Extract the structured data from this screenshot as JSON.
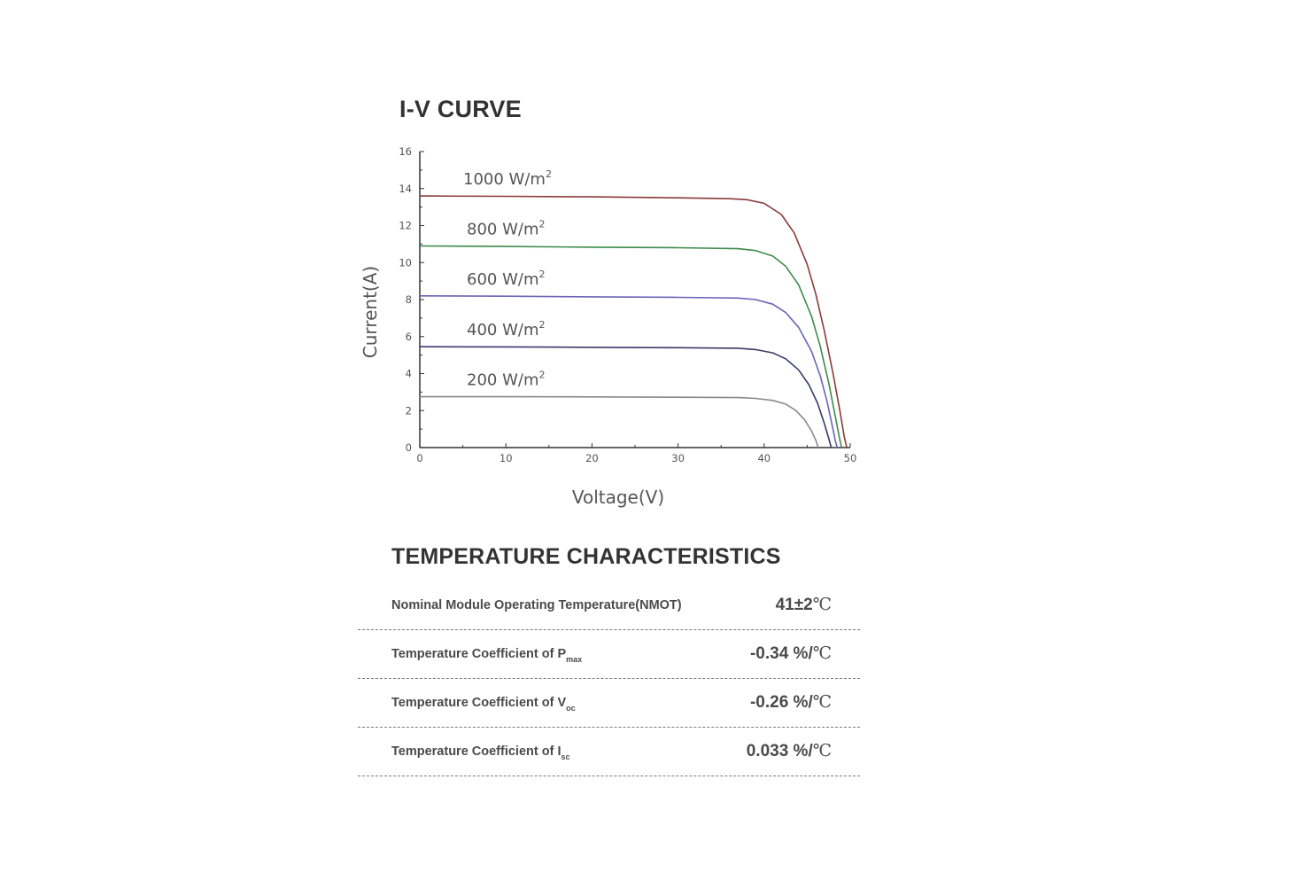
{
  "chart_data": {
    "type": "line",
    "title": "I-V CURVE",
    "xlabel": "Voltage(V)",
    "ylabel": "Current(A)",
    "xlim": [
      0,
      50
    ],
    "ylim": [
      0,
      16
    ],
    "x_ticks": [
      "0",
      "10",
      "20",
      "30",
      "40",
      "50"
    ],
    "y_ticks": [
      "0",
      "2",
      "4",
      "6",
      "8",
      "10",
      "12",
      "14",
      "16"
    ],
    "grid": false,
    "legend": "inline labels above each curve",
    "series": [
      {
        "name": "1000 W/m",
        "name_superscript": "2",
        "color": "#8b3a3a",
        "points": [
          [
            0,
            13.6
          ],
          [
            10,
            13.58
          ],
          [
            20,
            13.55
          ],
          [
            30,
            13.5
          ],
          [
            36,
            13.45
          ],
          [
            38,
            13.4
          ],
          [
            40,
            13.2
          ],
          [
            42,
            12.6
          ],
          [
            43.5,
            11.6
          ],
          [
            45,
            9.9
          ],
          [
            46,
            8.3
          ],
          [
            47,
            6.3
          ],
          [
            48,
            4.0
          ],
          [
            48.8,
            2.0
          ],
          [
            49.3,
            0.6
          ],
          [
            49.6,
            0
          ]
        ]
      },
      {
        "name": "800 W/m",
        "name_superscript": "2",
        "color": "#3d8b4a",
        "points": [
          [
            0,
            10.9
          ],
          [
            10,
            10.87
          ],
          [
            20,
            10.83
          ],
          [
            30,
            10.8
          ],
          [
            37,
            10.75
          ],
          [
            39,
            10.65
          ],
          [
            41,
            10.35
          ],
          [
            42.5,
            9.8
          ],
          [
            44,
            8.8
          ],
          [
            45.5,
            7.1
          ],
          [
            46.5,
            5.5
          ],
          [
            47.5,
            3.5
          ],
          [
            48.3,
            1.6
          ],
          [
            48.8,
            0.4
          ],
          [
            49.0,
            0
          ]
        ]
      },
      {
        "name": "600 W/m",
        "name_superscript": "2",
        "color": "#6a64b8",
        "points": [
          [
            0,
            8.2
          ],
          [
            10,
            8.18
          ],
          [
            20,
            8.15
          ],
          [
            30,
            8.12
          ],
          [
            37,
            8.08
          ],
          [
            39,
            8.0
          ],
          [
            41,
            7.75
          ],
          [
            42.5,
            7.3
          ],
          [
            44,
            6.5
          ],
          [
            45.5,
            5.2
          ],
          [
            46.5,
            3.9
          ],
          [
            47.3,
            2.5
          ],
          [
            47.9,
            1.2
          ],
          [
            48.3,
            0.3
          ],
          [
            48.5,
            0
          ]
        ]
      },
      {
        "name": "400 W/m",
        "name_superscript": "2",
        "color": "#3a3a6a",
        "points": [
          [
            0,
            5.45
          ],
          [
            10,
            5.44
          ],
          [
            20,
            5.42
          ],
          [
            30,
            5.4
          ],
          [
            37,
            5.37
          ],
          [
            39,
            5.3
          ],
          [
            41,
            5.12
          ],
          [
            42.5,
            4.8
          ],
          [
            44,
            4.2
          ],
          [
            45.2,
            3.4
          ],
          [
            46.2,
            2.4
          ],
          [
            47.0,
            1.3
          ],
          [
            47.5,
            0.5
          ],
          [
            47.8,
            0
          ]
        ]
      },
      {
        "name": "200 W/m",
        "name_superscript": "2",
        "color": "#8a8a8a",
        "points": [
          [
            0,
            2.75
          ],
          [
            10,
            2.75
          ],
          [
            20,
            2.74
          ],
          [
            30,
            2.72
          ],
          [
            37,
            2.7
          ],
          [
            39,
            2.66
          ],
          [
            41,
            2.55
          ],
          [
            42.5,
            2.35
          ],
          [
            43.7,
            2.0
          ],
          [
            44.7,
            1.5
          ],
          [
            45.5,
            0.9
          ],
          [
            46.0,
            0.4
          ],
          [
            46.3,
            0
          ]
        ]
      }
    ]
  },
  "temperature": {
    "title": "TEMPERATURE CHARACTERISTICS",
    "rows": [
      {
        "label": "Nominal Module Operating Temperature(NMOT)",
        "label_sub": "",
        "value": "41±2",
        "unit": "℃"
      },
      {
        "label": "Temperature Coefficient of P",
        "label_sub": "max",
        "value": "-0.34 %/",
        "unit": "℃"
      },
      {
        "label": "Temperature Coefficient of V",
        "label_sub": "oc",
        "value": "-0.26 %/",
        "unit": "℃"
      },
      {
        "label": "Temperature Coefficient of I",
        "label_sub": "sc",
        "value": "0.033 %/",
        "unit": "℃"
      }
    ]
  }
}
